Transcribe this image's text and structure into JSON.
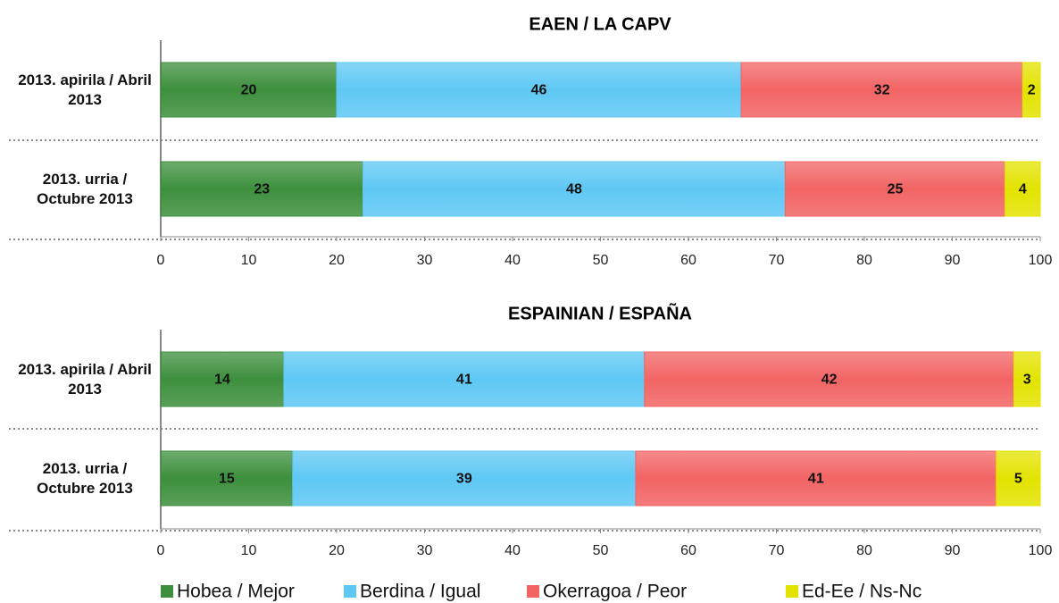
{
  "chart_data": [
    {
      "type": "stacked-bar",
      "orientation": "horizontal",
      "title": "EAEN / LA CAPV",
      "categories": [
        "2013. apirila / Abril 2013",
        "2013. urria / Octubre 2013"
      ],
      "series": [
        {
          "name": "Hobea / Mejor",
          "color": "#3d8f3d",
          "values": [
            20,
            23
          ]
        },
        {
          "name": "Berdina / Igual",
          "color": "#5ec8f4",
          "values": [
            46,
            48
          ]
        },
        {
          "name": "Okerragoa / Peor",
          "color": "#f26464",
          "values": [
            32,
            25
          ]
        },
        {
          "name": "Ed-Ee / Ns-Nc",
          "color": "#e3e300",
          "values": [
            2,
            4
          ]
        }
      ],
      "xlim": [
        0,
        100
      ],
      "xticks": [
        0,
        10,
        20,
        30,
        40,
        50,
        60,
        70,
        80,
        90,
        100
      ]
    },
    {
      "type": "stacked-bar",
      "orientation": "horizontal",
      "title": "ESPAINIAN / ESPAÑA",
      "categories": [
        "2013. apirila / Abril 2013",
        "2013. urria / Octubre 2013"
      ],
      "series": [
        {
          "name": "Hobea / Mejor",
          "color": "#3d8f3d",
          "values": [
            14,
            15
          ]
        },
        {
          "name": "Berdina / Igual",
          "color": "#5ec8f4",
          "values": [
            41,
            39
          ]
        },
        {
          "name": "Okerragoa / Peor",
          "color": "#f26464",
          "values": [
            42,
            41
          ]
        },
        {
          "name": "Ed-Ee / Ns-Nc",
          "color": "#e3e300",
          "values": [
            3,
            5
          ]
        }
      ],
      "xlim": [
        0,
        100
      ],
      "xticks": [
        0,
        10,
        20,
        30,
        40,
        50,
        60,
        70,
        80,
        90,
        100
      ]
    }
  ]
}
